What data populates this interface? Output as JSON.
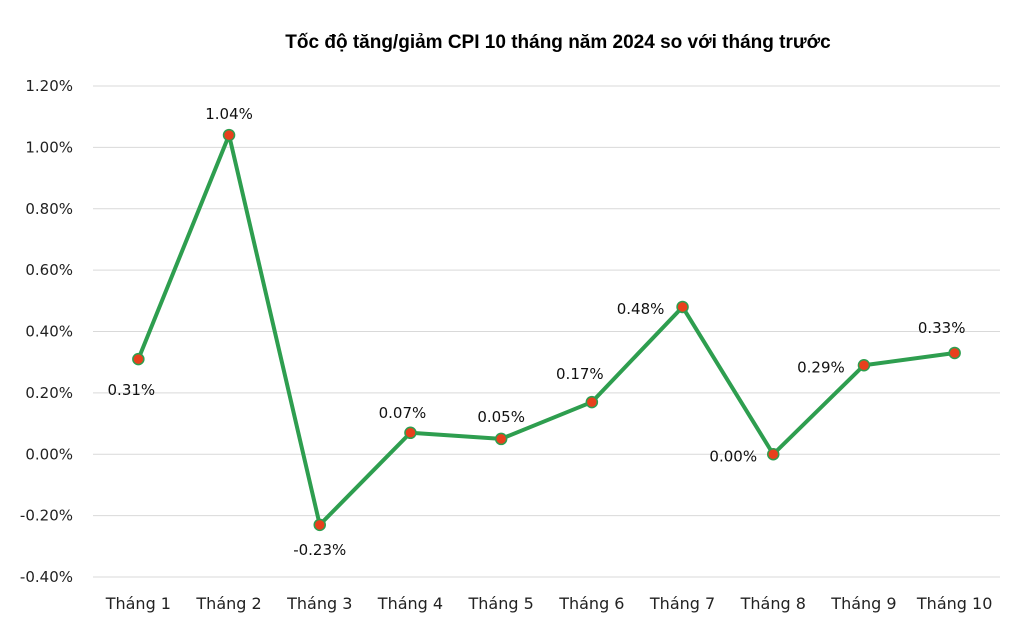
{
  "chart_data": {
    "type": "line",
    "title": "Tốc độ tăng/giảm CPI 10 tháng năm 2024 so với tháng trước",
    "xlabel": "",
    "ylabel": "",
    "categories": [
      "Tháng 1",
      "Tháng 2",
      "Tháng 3",
      "Tháng 4",
      "Tháng 5",
      "Tháng 6",
      "Tháng 7",
      "Tháng 8",
      "Tháng 9",
      "Tháng 10"
    ],
    "series": [
      {
        "values": [
          0.31,
          1.04,
          -0.23,
          0.07,
          0.05,
          0.17,
          0.48,
          0.0,
          0.29,
          0.33
        ],
        "labels": [
          "0.31%",
          "1.04%",
          "-0.23%",
          "0.07%",
          "0.05%",
          "0.17%",
          "0.48%",
          "0.00%",
          "0.29%",
          "0.33%"
        ],
        "color": "#2e9e4f",
        "marker_color": "#e8401c"
      }
    ],
    "ylim": [
      -0.4,
      1.2
    ],
    "yticks": [
      1.2,
      1.0,
      0.8,
      0.6,
      0.4,
      0.2,
      0.0,
      -0.2,
      -0.4
    ],
    "ytick_labels": [
      "1.20%",
      "1.00%",
      "0.80%",
      "0.60%",
      "0.40%",
      "0.20%",
      "0.00%",
      "-0.20%",
      "-0.40%"
    ],
    "grid": true,
    "legend": "none"
  }
}
